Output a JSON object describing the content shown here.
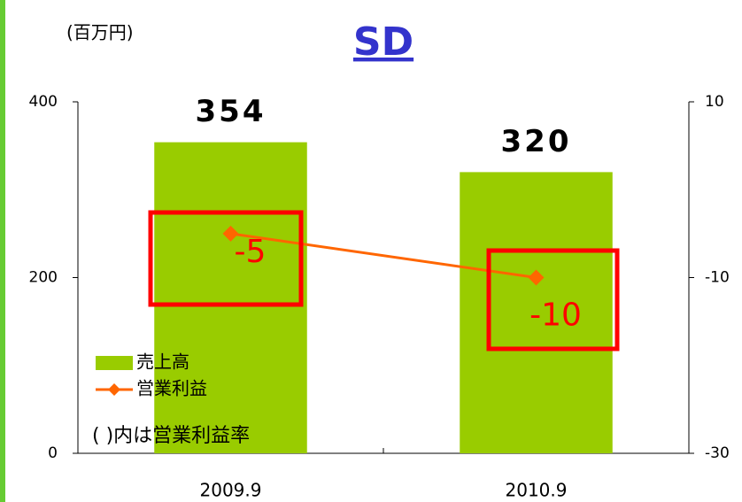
{
  "chart_data": {
    "type": "bar",
    "title": "SD",
    "unit_label": "(百万円)",
    "annotation": "( )内は営業利益率",
    "categories": [
      "2009.9",
      "2010.9"
    ],
    "series": [
      {
        "name": "売上高",
        "type": "bar",
        "color": "#99cc00",
        "values": [
          354,
          320
        ]
      },
      {
        "name": "営業利益",
        "type": "line",
        "axis": "y2",
        "color": "#ff6600",
        "values": [
          -5,
          -10
        ]
      }
    ],
    "ylim": [
      0,
      400
    ],
    "yticks": [
      0,
      200,
      400
    ],
    "y2lim": [
      -30,
      10
    ],
    "y2ticks": [
      -30,
      -10,
      10
    ],
    "legend": "lower left"
  }
}
